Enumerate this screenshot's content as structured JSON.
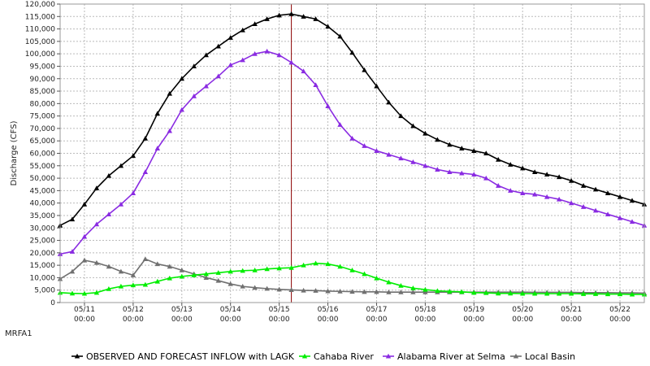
{
  "station_label": "MRFA1",
  "colors": {
    "inflow": "#000000",
    "cahaba": "#00ee00",
    "alabama": "#8a2be2",
    "local": "#707070",
    "marker_line": "#8b0000",
    "grid": "#bbbbbb"
  },
  "chart_data": {
    "type": "line",
    "title": "",
    "xlabel": "",
    "ylabel": "Discharge (CFS)",
    "ylim": [
      0,
      120000
    ],
    "yticks": [
      0,
      5000,
      10000,
      15000,
      20000,
      25000,
      30000,
      35000,
      40000,
      45000,
      50000,
      55000,
      60000,
      65000,
      70000,
      75000,
      80000,
      85000,
      90000,
      95000,
      100000,
      105000,
      110000,
      115000,
      120000
    ],
    "ytick_labels": [
      "0",
      "5,000",
      "10,000",
      "15,000",
      "20,000",
      "25,000",
      "30,000",
      "35,000",
      "40,000",
      "45,000",
      "50,000",
      "55,000",
      "60,000",
      "65,000",
      "70,000",
      "75,000",
      "80,000",
      "85,000",
      "90,000",
      "95,000",
      "100,000",
      "105,000",
      "110,000",
      "115,000",
      "120,000"
    ],
    "xlim": [
      -0.5,
      11.5
    ],
    "xticks": [
      0,
      1,
      2,
      3,
      4,
      5,
      6,
      7,
      8,
      9,
      10,
      11
    ],
    "xtick_labels": [
      [
        "05/11",
        "00:00"
      ],
      [
        "05/12",
        "00:00"
      ],
      [
        "05/13",
        "00:00"
      ],
      [
        "05/14",
        "00:00"
      ],
      [
        "05/15",
        "00:00"
      ],
      [
        "05/16",
        "00:00"
      ],
      [
        "05/17",
        "00:00"
      ],
      [
        "05/18",
        "00:00"
      ],
      [
        "05/19",
        "00:00"
      ],
      [
        "05/20",
        "00:00"
      ],
      [
        "05/21",
        "00:00"
      ],
      [
        "05/22",
        "00:00"
      ]
    ],
    "grid": true,
    "legend_position": "bottom",
    "current_time_marker": 4.25,
    "x": [
      -0.5,
      -0.25,
      0,
      0.25,
      0.5,
      0.75,
      1,
      1.25,
      1.5,
      1.75,
      2,
      2.25,
      2.5,
      2.75,
      3,
      3.25,
      3.5,
      3.75,
      4,
      4.25,
      4.5,
      4.75,
      5,
      5.25,
      5.5,
      5.75,
      6,
      6.25,
      6.5,
      6.75,
      7,
      7.25,
      7.5,
      7.75,
      8,
      8.25,
      8.5,
      8.75,
      9,
      9.25,
      9.5,
      9.75,
      10,
      10.25,
      10.5,
      10.75,
      11,
      11.25,
      11.5
    ],
    "series": [
      {
        "name": "OBSERVED AND FORECAST INFLOW with LAGK",
        "color_key": "inflow",
        "values": [
          31000,
          33500,
          39500,
          46000,
          51000,
          55000,
          59000,
          66000,
          76000,
          84000,
          90000,
          95000,
          99500,
          103000,
          106500,
          109500,
          112000,
          114000,
          115500,
          116000,
          115000,
          114000,
          111000,
          107000,
          100500,
          93500,
          87000,
          80500,
          75000,
          71000,
          68000,
          65500,
          63500,
          62000,
          61000,
          60000,
          57500,
          55500,
          54000,
          52500,
          51500,
          50500,
          49000,
          47000,
          45500,
          44000,
          42500,
          41000,
          39500
        ]
      },
      {
        "name": "Cahaba River",
        "color_key": "cahaba",
        "values": [
          4000,
          3700,
          3600,
          4000,
          5500,
          6500,
          7000,
          7200,
          8500,
          9800,
          10500,
          11000,
          11500,
          12000,
          12500,
          12800,
          13000,
          13500,
          13800,
          14000,
          15000,
          15800,
          15500,
          14500,
          13000,
          11500,
          9800,
          8200,
          6800,
          5800,
          5200,
          4700,
          4500,
          4300,
          4000,
          3900,
          3700,
          3700,
          3600,
          3600,
          3600,
          3600,
          3600,
          3500,
          3500,
          3400,
          3400,
          3300,
          3300
        ]
      },
      {
        "name": "Alabama River at Selma",
        "color_key": "alabama",
        "values": [
          19500,
          20500,
          26500,
          31500,
          35500,
          39500,
          44000,
          52500,
          62000,
          69000,
          77500,
          83000,
          87000,
          91000,
          95500,
          97500,
          100000,
          101000,
          99500,
          96500,
          93000,
          87500,
          79000,
          71500,
          66000,
          63000,
          61000,
          59500,
          58000,
          56500,
          55000,
          53500,
          52500,
          52000,
          51500,
          50000,
          47000,
          45000,
          44000,
          43500,
          42500,
          41500,
          40000,
          38500,
          37000,
          35500,
          34000,
          32500,
          31000
        ]
      },
      {
        "name": "Local Basin",
        "color_key": "local",
        "values": [
          9500,
          12500,
          17000,
          16000,
          14500,
          12500,
          11000,
          17500,
          15500,
          14500,
          13000,
          11500,
          10000,
          8800,
          7500,
          6500,
          6000,
          5600,
          5300,
          5100,
          4900,
          4800,
          4600,
          4500,
          4400,
          4300,
          4300,
          4200,
          4200,
          4200,
          4200,
          4200,
          4200,
          4200,
          4200,
          4200,
          4200,
          4200,
          4200,
          4100,
          4100,
          4100,
          4100,
          4000,
          4000,
          4000,
          3900,
          3900,
          3800
        ]
      }
    ]
  }
}
